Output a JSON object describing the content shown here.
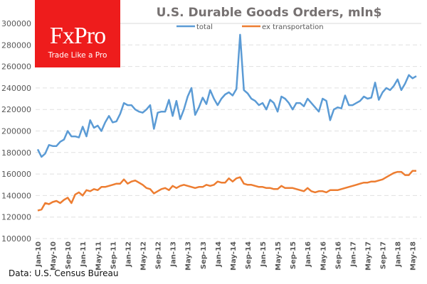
{
  "logo": {
    "brand": "FxPro",
    "tagline": "Trade Like a Pro",
    "color": "#ee1c1c"
  },
  "source": "Data: U.S. Census Bureau",
  "chart_data": {
    "type": "line",
    "title": "U.S. Durable Goods Orders, mln$",
    "xlabel": "",
    "ylabel": "",
    "ylim": [
      100000,
      300000
    ],
    "yticks": [
      100000,
      120000,
      140000,
      160000,
      180000,
      200000,
      220000,
      240000,
      260000,
      280000,
      300000
    ],
    "grid": true,
    "legend": "top-center",
    "x_tick_labels": [
      "Jan-10",
      "May-10",
      "Sep-10",
      "Jan-11",
      "May-11",
      "Sep-11",
      "Jan-12",
      "May-12",
      "Sep-12",
      "Jan-13",
      "May-13",
      "Sep-13",
      "Jan-14",
      "May-14",
      "Sep-14",
      "Jan-15",
      "May-15",
      "Sep-15",
      "Jan-16",
      "May-16",
      "Sep-16",
      "Jan-17",
      "May-17",
      "Sep-17",
      "Jan-18",
      "May-18"
    ],
    "x_tick_step_months": 4,
    "x_start": "Jan-10",
    "series": [
      {
        "name": "total",
        "color": "#5b9bd5",
        "values": [
          183000,
          176000,
          179000,
          187000,
          186000,
          186000,
          190000,
          192000,
          200000,
          195000,
          195000,
          194000,
          204000,
          195000,
          210000,
          203000,
          205000,
          200000,
          208000,
          214000,
          208000,
          209000,
          216000,
          226000,
          224000,
          224000,
          220000,
          218000,
          217000,
          220000,
          224000,
          202000,
          217000,
          218000,
          218000,
          229000,
          214000,
          228000,
          211000,
          220000,
          232000,
          240000,
          215000,
          222000,
          231000,
          225000,
          238000,
          230000,
          224000,
          230000,
          234000,
          236000,
          233000,
          239000,
          289500,
          238000,
          235000,
          230000,
          228000,
          224000,
          226000,
          220000,
          229000,
          226000,
          218000,
          232000,
          230000,
          226000,
          220000,
          226000,
          226000,
          223000,
          230000,
          226000,
          222000,
          218000,
          230000,
          228000,
          210000,
          220000,
          222000,
          221000,
          233000,
          224000,
          224000,
          226000,
          228000,
          232000,
          230000,
          231000,
          245000,
          229000,
          236000,
          240000,
          238000,
          242000,
          248000,
          238000,
          244000,
          252000,
          249000,
          251000
        ]
      },
      {
        "name": "ex transportation",
        "color": "#ed7d31",
        "values": [
          126000,
          127000,
          133000,
          132000,
          134000,
          135000,
          133000,
          136000,
          138000,
          133000,
          141000,
          143000,
          140000,
          145000,
          144000,
          146000,
          145000,
          148000,
          148000,
          149000,
          150000,
          151000,
          151000,
          155000,
          151000,
          153000,
          154000,
          152000,
          150000,
          147000,
          146000,
          142000,
          144000,
          146000,
          147000,
          145000,
          149000,
          147000,
          149000,
          150000,
          149000,
          148000,
          147000,
          148000,
          148000,
          150000,
          149000,
          150000,
          153000,
          152000,
          152000,
          156000,
          153000,
          156000,
          157000,
          151000,
          150000,
          150000,
          149000,
          148000,
          148000,
          147000,
          147000,
          146000,
          146000,
          149000,
          147000,
          147000,
          147000,
          146000,
          145000,
          144000,
          147000,
          144000,
          143000,
          144000,
          144000,
          143000,
          145000,
          145000,
          145000,
          146000,
          147000,
          148000,
          149000,
          150000,
          151000,
          152000,
          152000,
          153000,
          153000,
          154000,
          155000,
          157000,
          159000,
          161000,
          162000,
          162000,
          159000,
          159000,
          163000,
          163000
        ]
      }
    ]
  }
}
